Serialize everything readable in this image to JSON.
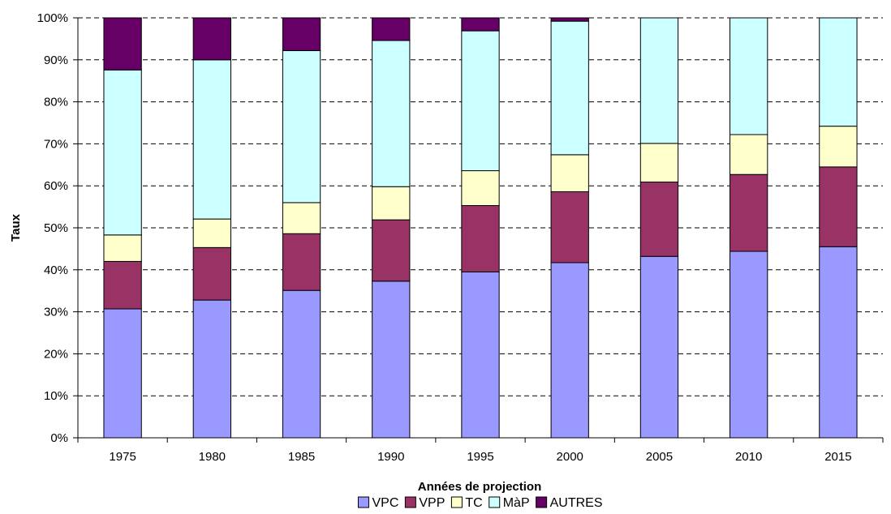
{
  "chart_data": {
    "type": "bar",
    "stacked": true,
    "percent": true,
    "title": "",
    "xlabel": "Années de projection",
    "ylabel": "Taux",
    "ylim": [
      0,
      100
    ],
    "yticks": [
      "0%",
      "10%",
      "20%",
      "30%",
      "40%",
      "50%",
      "60%",
      "70%",
      "80%",
      "90%",
      "100%"
    ],
    "grid": true,
    "legend_position": "bottom",
    "categories": [
      "1975",
      "1980",
      "1985",
      "1990",
      "1995",
      "2000",
      "2005",
      "2010",
      "2015"
    ],
    "series": [
      {
        "name": "VPC",
        "color": "#9999ff",
        "values": [
          30.7,
          32.8,
          35.1,
          37.3,
          39.5,
          41.7,
          43.2,
          44.4,
          45.5
        ]
      },
      {
        "name": "VPP",
        "color": "#993366",
        "values": [
          11.3,
          12.5,
          13.5,
          14.6,
          15.8,
          16.9,
          17.7,
          18.3,
          19.0
        ]
      },
      {
        "name": "TC",
        "color": "#ffffcc",
        "values": [
          6.3,
          6.8,
          7.4,
          7.9,
          8.3,
          8.8,
          9.2,
          9.5,
          9.7
        ]
      },
      {
        "name": "MàP",
        "color": "#ccffff",
        "values": [
          39.3,
          37.9,
          36.2,
          34.8,
          33.3,
          31.8,
          29.9,
          27.8,
          25.8
        ]
      },
      {
        "name": "AUTRES",
        "color": "#660066",
        "values": [
          12.4,
          10.0,
          7.8,
          5.4,
          3.1,
          0.8,
          0.0,
          0.0,
          0.0
        ]
      }
    ]
  }
}
